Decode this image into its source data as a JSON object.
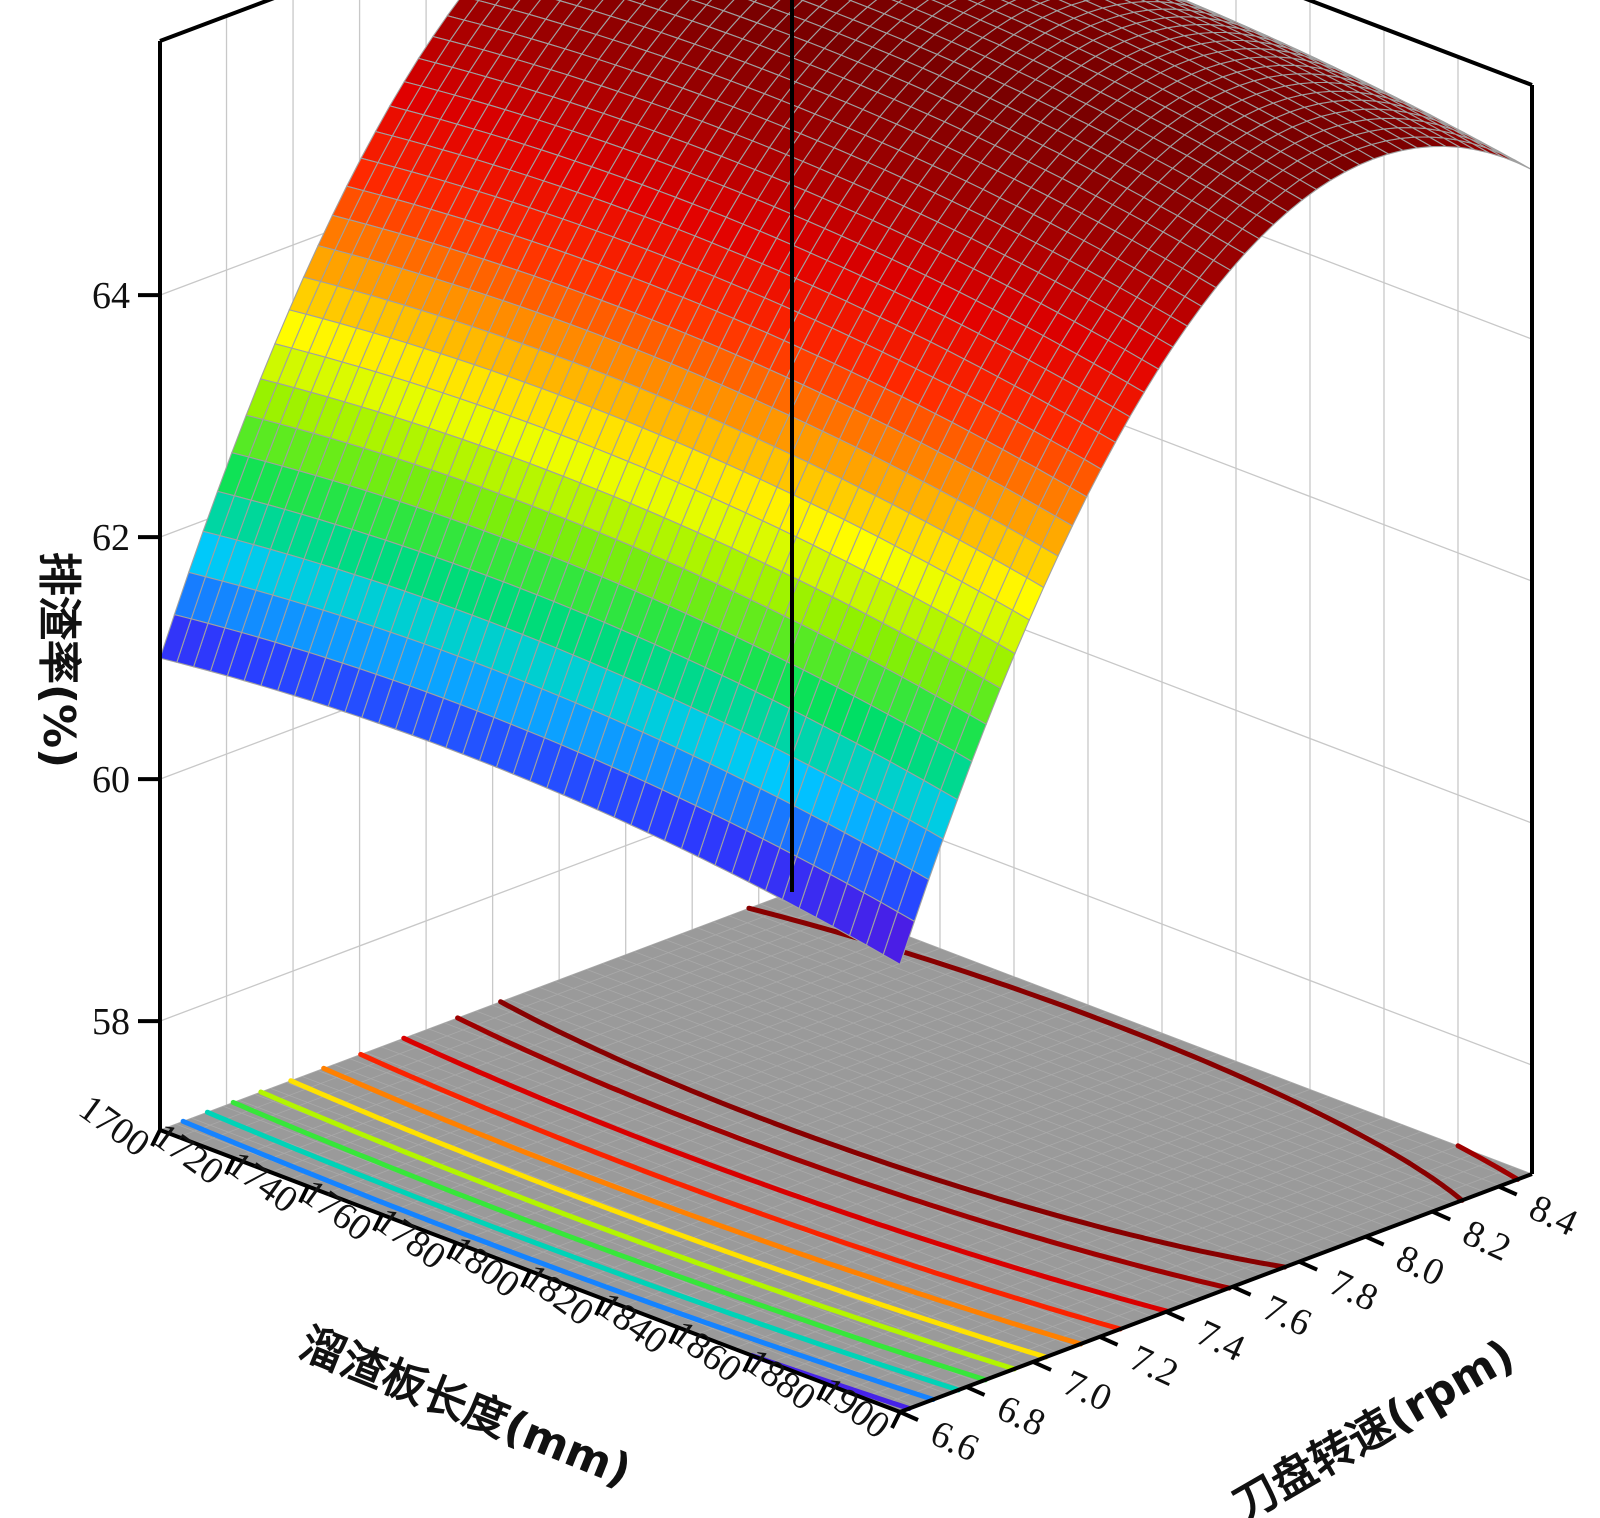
{
  "chart_data": {
    "type": "surface3d",
    "title": "",
    "xlabel": "溜渣板长度(mm)",
    "ylabel": "刀盘转速(rpm)",
    "zlabel": "排渣率(%)",
    "x_ticks": [
      "1700",
      "1720",
      "1740",
      "1760",
      "1780",
      "1800",
      "1820",
      "1840",
      "1860",
      "1880",
      "1900"
    ],
    "y_ticks": [
      "6.6",
      "6.8",
      "7.0",
      "7.2",
      "7.4",
      "7.6",
      "7.8",
      "8.0",
      "8.2",
      "8.4"
    ],
    "z_ticks": [
      "58",
      "60",
      "62",
      "64"
    ],
    "xlim": [
      1700,
      1900
    ],
    "ylim": [
      6.6,
      8.5
    ],
    "zlim": [
      57.1,
      66.1
    ],
    "grid": true,
    "surface_corners": [
      {
        "x": 1700,
        "y": 6.6,
        "z": 61.0
      },
      {
        "x": 1900,
        "y": 6.6,
        "z": 60.8
      },
      {
        "x": 1700,
        "y": 8.5,
        "z": 65.5
      },
      {
        "x": 1900,
        "y": 8.5,
        "z": 65.4
      }
    ],
    "surface_ridge": {
      "y": 8.25,
      "z": 66.0
    },
    "contour_levels": [
      61.0,
      61.5,
      62.0,
      62.5,
      63.0,
      63.5,
      64.0,
      64.5,
      65.0,
      65.5,
      65.8
    ],
    "colormap": [
      "#6a00cc",
      "#2a3cff",
      "#00c8ff",
      "#00e060",
      "#8cf000",
      "#ffff00",
      "#ff9900",
      "#ff2a00",
      "#e00000",
      "#a00000",
      "#7a0000"
    ],
    "floor_color": "#9a9a9a",
    "surface_mesh_color": "#a0a0a0"
  }
}
